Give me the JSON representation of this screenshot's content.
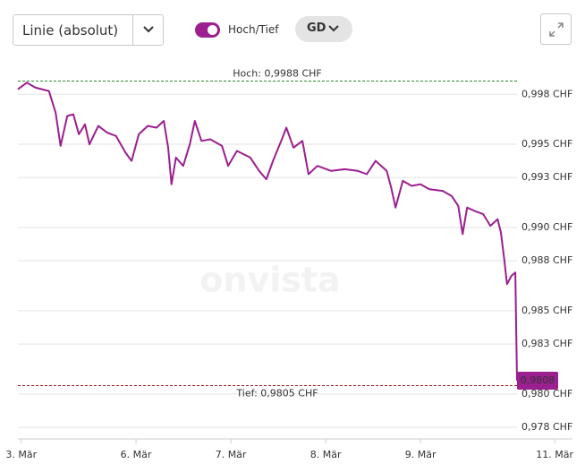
{
  "controls": {
    "chart_type": "Linie (absolut)",
    "toggle_label": "Hoch/Tief",
    "average_button": "GD"
  },
  "chart_data": {
    "type": "line",
    "watermark": "onvista",
    "color": "#9b1f8f",
    "x": [
      0,
      1.6,
      3.2,
      5.6,
      6.8,
      7.7,
      8.9,
      10,
      11,
      12.1,
      12.9,
      14.5,
      16.1,
      17.7,
      19.4,
      20.5,
      21.8,
      23.4,
      25,
      26.3,
      27.1,
      27.7,
      28.5,
      29.8,
      31,
      31.9,
      33.1,
      34.7,
      36.8,
      37.9,
      39.5,
      41.9,
      43.5,
      44.8,
      46,
      47.6,
      48.4,
      49.7,
      51.3,
      52.4,
      54,
      56.5,
      58.9,
      61.3,
      62.9,
      64.5,
      66.5,
      67.3,
      68.1,
      69.4,
      71,
      72.6,
      74.2,
      76.6,
      78.2,
      79.4,
      80.2,
      81,
      82.3,
      83.9,
      85.2,
      86.5,
      87.1,
      87.7,
      88.2,
      89,
      89.7,
      90
    ],
    "values": [
      0.9983,
      0.9987,
      0.9984,
      0.9982,
      0.9969,
      0.9949,
      0.9967,
      0.9968,
      0.9956,
      0.9962,
      0.995,
      0.9961,
      0.9957,
      0.9955,
      0.9945,
      0.994,
      0.9956,
      0.9961,
      0.996,
      0.9964,
      0.9948,
      0.9926,
      0.9942,
      0.9937,
      0.995,
      0.9964,
      0.9952,
      0.9953,
      0.9949,
      0.9937,
      0.9946,
      0.9942,
      0.9934,
      0.9929,
      0.994,
      0.9953,
      0.996,
      0.9948,
      0.9952,
      0.9932,
      0.9937,
      0.9934,
      0.9935,
      0.9934,
      0.9932,
      0.994,
      0.9934,
      0.9924,
      0.9912,
      0.9928,
      0.9925,
      0.9926,
      0.9923,
      0.9922,
      0.9919,
      0.9913,
      0.9896,
      0.9912,
      0.991,
      0.9908,
      0.9901,
      0.9905,
      0.9897,
      0.9881,
      0.9866,
      0.9871,
      0.9873,
      0.9808
    ],
    "last_value": {
      "value": 0.9808,
      "label": "0,9808"
    },
    "high": {
      "value": 0.9988,
      "label": "Hoch: 0,9988 CHF",
      "color": "#2e8b2e"
    },
    "low": {
      "value": 0.9805,
      "label": "Tief: 0,9805 CHF",
      "color": "#9b1b1b"
    },
    "xlim": [
      0,
      100
    ],
    "xticks": [
      {
        "value": 0.6,
        "label": "3. Mär"
      },
      {
        "value": 21.3,
        "label": "6. Mär"
      },
      {
        "value": 38.4,
        "label": "7. Mär"
      },
      {
        "value": 55.5,
        "label": "8. Mär"
      },
      {
        "value": 72.6,
        "label": "9. Mär"
      },
      {
        "value": 96.8,
        "label": "11. Mär"
      }
    ],
    "ylim": [
      0.9773,
      0.9999
    ],
    "yticks": [
      {
        "value": 0.998,
        "label": "0,998 CHF"
      },
      {
        "value": 0.995,
        "label": "0,995 CHF"
      },
      {
        "value": 0.993,
        "label": "0,993 CHF"
      },
      {
        "value": 0.99,
        "label": "0,990 CHF"
      },
      {
        "value": 0.988,
        "label": "0,988 CHF"
      },
      {
        "value": 0.985,
        "label": "0,985 CHF"
      },
      {
        "value": 0.983,
        "label": "0,983 CHF"
      },
      {
        "value": 0.98,
        "label": "0,980 CHF"
      },
      {
        "value": 0.978,
        "label": "0,978 CHF"
      }
    ],
    "grid": true
  }
}
